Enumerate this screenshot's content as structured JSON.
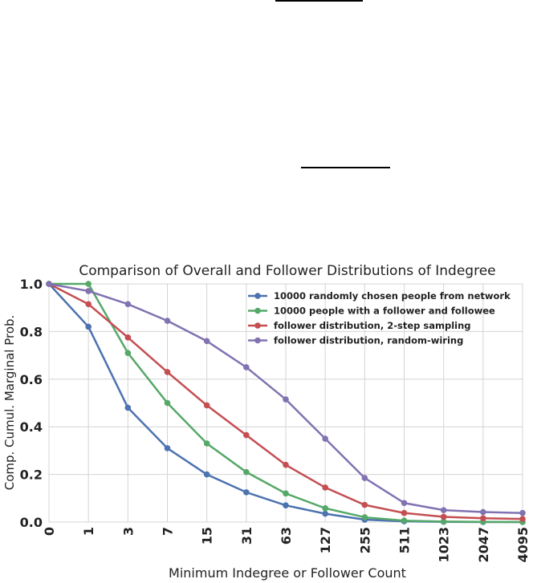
{
  "chart_data": {
    "type": "line",
    "title": "Comparison of Overall and Follower Distributions of Indegree",
    "xlabel": "Minimum Indegree or Follower Count",
    "ylabel": "Comp. Cumul. Marginal Prob.",
    "x_scale": "log2(x+1)",
    "x": [
      0,
      1,
      3,
      7,
      15,
      31,
      63,
      127,
      255,
      511,
      1023,
      2047,
      4095
    ],
    "x_tick_labels": [
      "0",
      "1",
      "3",
      "7",
      "15",
      "31",
      "63",
      "127",
      "255",
      "511",
      "1023",
      "2047",
      "4095"
    ],
    "y_tick_labels": [
      "0.0",
      "0.2",
      "0.4",
      "0.6",
      "0.8",
      "1.0"
    ],
    "ylim": [
      0,
      1
    ],
    "grid": true,
    "legend": "top-right",
    "series": [
      {
        "name": "10000 randomly chosen people from network",
        "color": "#4c72b0",
        "values": [
          1.0,
          0.82,
          0.48,
          0.31,
          0.2,
          0.125,
          0.07,
          0.035,
          0.01,
          0.003,
          0.001,
          0.0,
          0.0
        ]
      },
      {
        "name": "10000 people with a follower and followee",
        "color": "#55a868",
        "values": [
          1.0,
          1.0,
          0.71,
          0.5,
          0.33,
          0.21,
          0.12,
          0.058,
          0.02,
          0.006,
          0.002,
          0.001,
          0.0
        ]
      },
      {
        "name": "follower distribution, 2-step sampling",
        "color": "#c44e52",
        "values": [
          1.0,
          0.915,
          0.775,
          0.63,
          0.49,
          0.365,
          0.24,
          0.145,
          0.072,
          0.038,
          0.022,
          0.016,
          0.013
        ]
      },
      {
        "name": "follower distribution, random-wiring",
        "color": "#8172b2",
        "values": [
          1.0,
          0.97,
          0.915,
          0.845,
          0.76,
          0.65,
          0.515,
          0.35,
          0.185,
          0.08,
          0.05,
          0.042,
          0.038
        ]
      }
    ]
  }
}
